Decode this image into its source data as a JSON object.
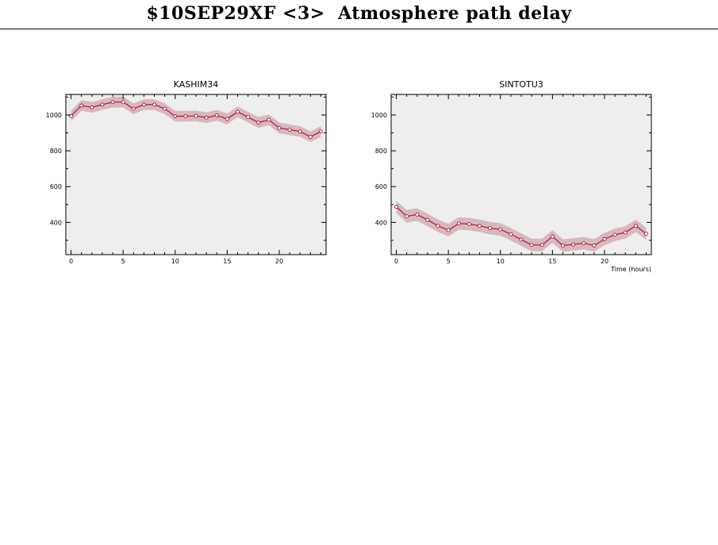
{
  "page": {
    "title": "$10SEP29XF <3>  Atmosphere path delay"
  },
  "chart_data": [
    {
      "type": "line",
      "title": "KASHIM34",
      "xlabel": "",
      "ylabel": "",
      "xlim": [
        -0.5,
        24.5
      ],
      "ylim": [
        220,
        1115
      ],
      "x_ticks": [
        0,
        5,
        10,
        15,
        20
      ],
      "y_ticks": [
        400,
        600,
        800,
        1000
      ],
      "grid": false,
      "series": [
        {
          "x": [
            0,
            1,
            2,
            3,
            4,
            5,
            6,
            7,
            8,
            9,
            10,
            11,
            12,
            13,
            14,
            15,
            16,
            17,
            18,
            19,
            20,
            21,
            22,
            23,
            24
          ],
          "values": [
            995,
            1053,
            1043,
            1058,
            1072,
            1072,
            1035,
            1058,
            1058,
            1035,
            993,
            993,
            995,
            985,
            998,
            978,
            1018,
            988,
            958,
            973,
            928,
            918,
            908,
            878,
            908
          ],
          "band_halfwidth": 30
        }
      ]
    },
    {
      "type": "line",
      "title": "SINTOTU3",
      "xlabel": "Time (hours)",
      "ylabel": "",
      "xlim": [
        -0.5,
        24.5
      ],
      "ylim": [
        220,
        1115
      ],
      "x_ticks": [
        0,
        5,
        10,
        15,
        20
      ],
      "y_ticks": [
        400,
        600,
        800,
        1000
      ],
      "grid": false,
      "series": [
        {
          "x": [
            0,
            1,
            2,
            3,
            4,
            5,
            6,
            7,
            8,
            9,
            10,
            11,
            12,
            13,
            14,
            15,
            16,
            17,
            18,
            19,
            20,
            21,
            22,
            23,
            24
          ],
          "values": [
            487,
            434,
            444,
            414,
            381,
            357,
            394,
            391,
            381,
            368,
            361,
            334,
            304,
            274,
            274,
            321,
            271,
            277,
            284,
            271,
            307,
            331,
            344,
            381,
            337
          ],
          "band_halfwidth": 35
        }
      ]
    }
  ],
  "colors": {
    "plot_background": "#eeeeee",
    "line": "#b0163a",
    "marker_fill": "#ffffff",
    "band": "#d7b8bf",
    "axis": "#000000"
  }
}
